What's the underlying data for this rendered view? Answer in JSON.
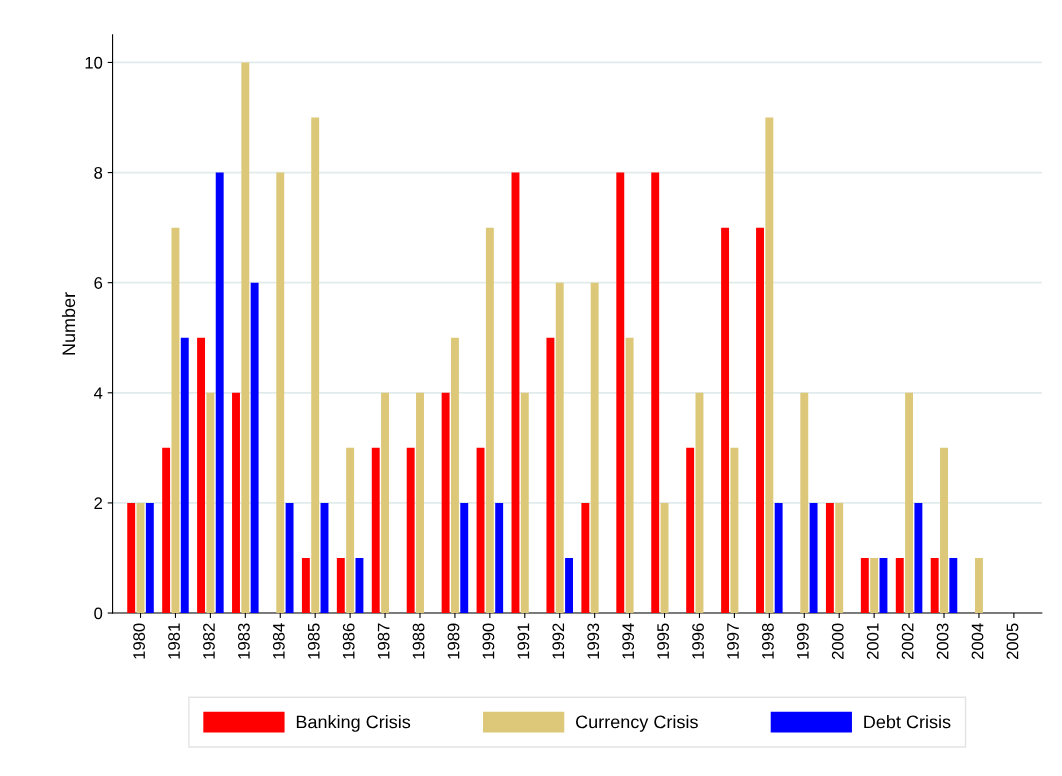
{
  "chart_data": {
    "type": "bar",
    "ylabel": "Number",
    "categories": [
      "1980",
      "1981",
      "1982",
      "1983",
      "1984",
      "1985",
      "1986",
      "1987",
      "1988",
      "1989",
      "1990",
      "1991",
      "1992",
      "1993",
      "1994",
      "1995",
      "1996",
      "1997",
      "1998",
      "1999",
      "2000",
      "2001",
      "2002",
      "2003",
      "2004",
      "2005"
    ],
    "series": [
      {
        "name": "Banking Crisis",
        "color": "#ff0000",
        "values": [
          2,
          3,
          5,
          4,
          0,
          1,
          1,
          3,
          3,
          4,
          3,
          8,
          5,
          2,
          8,
          8,
          3,
          7,
          7,
          0,
          2,
          1,
          1,
          1,
          0,
          0
        ]
      },
      {
        "name": "Currency Crisis",
        "color": "#dcc878",
        "values": [
          2,
          7,
          4,
          10,
          8,
          9,
          3,
          4,
          4,
          5,
          7,
          4,
          6,
          6,
          5,
          2,
          4,
          3,
          9,
          4,
          2,
          1,
          4,
          3,
          1,
          0
        ]
      },
      {
        "name": "Debt Crisis",
        "color": "#0000ff",
        "values": [
          2,
          5,
          8,
          6,
          2,
          2,
          1,
          0,
          0,
          2,
          2,
          0,
          1,
          0,
          0,
          0,
          0,
          0,
          2,
          2,
          0,
          1,
          2,
          1,
          0,
          0
        ]
      }
    ],
    "ylim": [
      0,
      10.5
    ],
    "yticks": [
      0,
      2,
      4,
      6,
      8,
      10
    ],
    "grid": "y",
    "legend": "bottom"
  }
}
